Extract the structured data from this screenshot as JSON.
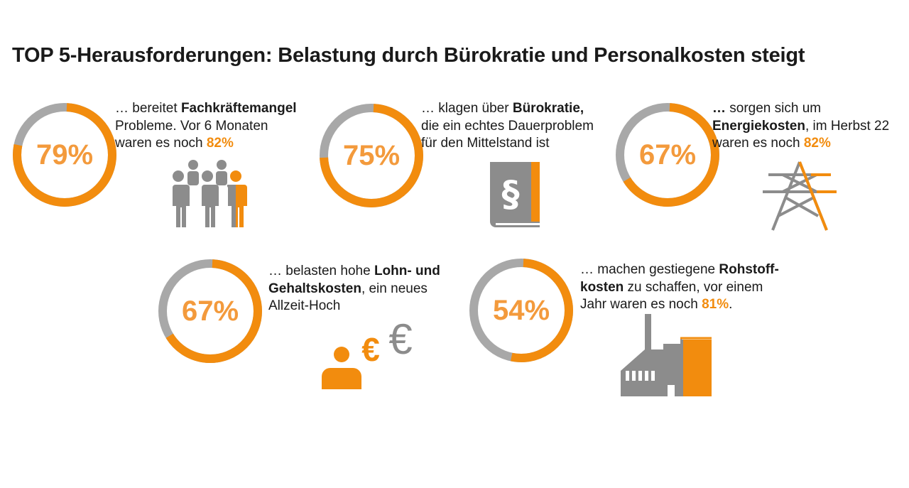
{
  "title": "TOP 5-Herausforderungen: Belastung durch Bürokratie und Personalkosten steigt",
  "colors": {
    "accent": "#f28c0e",
    "track": "#a8a8a8",
    "percent_text": "#f39a3c",
    "icon_gray": "#8c8c8c"
  },
  "chart_data": {
    "type": "donut",
    "series": [
      {
        "percent_label": "79%",
        "value": 79
      },
      {
        "percent_label": "75%",
        "value": 75
      },
      {
        "percent_label": "67%",
        "value": 67
      },
      {
        "percent_label": "67%",
        "value": 67
      },
      {
        "percent_label": "54%",
        "value": 54
      }
    ]
  },
  "items": [
    {
      "lines": [
        [
          {
            "t": "… bereitet ",
            "s": ""
          },
          {
            "t": "Fachkräftemangel",
            "s": "b"
          }
        ],
        [
          {
            "t": "Probleme. Vor 6 Monaten",
            "s": ""
          }
        ],
        [
          {
            "t": "waren es noch ",
            "s": ""
          },
          {
            "t": "82%",
            "s": "o"
          }
        ]
      ],
      "icon": "people-group-icon"
    },
    {
      "lines": [
        [
          {
            "t": "… klagen über ",
            "s": ""
          },
          {
            "t": "Bürokratie,",
            "s": "b"
          }
        ],
        [
          {
            "t": "die ein echtes Dauerproblem",
            "s": ""
          }
        ],
        [
          {
            "t": "für den Mittelstand ist",
            "s": ""
          }
        ]
      ],
      "icon": "law-book-icon",
      "icon_symbol": "§"
    },
    {
      "lines": [
        [
          {
            "t": "…",
            "s": "b"
          },
          {
            "t": " sorgen sich um",
            "s": ""
          }
        ],
        [
          {
            "t": "Energiekosten",
            "s": "b"
          },
          {
            "t": ", im Herbst 22",
            "s": ""
          }
        ],
        [
          {
            "t": "waren es noch ",
            "s": ""
          },
          {
            "t": "82%",
            "s": "o"
          }
        ]
      ],
      "icon": "power-pylon-icon"
    },
    {
      "lines": [
        [
          {
            "t": "… belasten hohe ",
            "s": ""
          },
          {
            "t": "Lohn- und",
            "s": "b"
          }
        ],
        [
          {
            "t": "Gehaltskosten",
            "s": "b"
          },
          {
            "t": ", ein neues",
            "s": ""
          }
        ],
        [
          {
            "t": "Allzeit-Hoch",
            "s": ""
          }
        ]
      ],
      "icon": "person-euro-icon",
      "icon_symbols": [
        "€",
        "€"
      ]
    },
    {
      "lines": [
        [
          {
            "t": "… machen gestiegene ",
            "s": ""
          },
          {
            "t": "Rohstoff-",
            "s": "b"
          }
        ],
        [
          {
            "t": "kosten",
            "s": "b"
          },
          {
            "t": " zu schaffen, vor einem",
            "s": ""
          }
        ],
        [
          {
            "t": "Jahr waren es noch ",
            "s": ""
          },
          {
            "t": "81%",
            "s": "o"
          },
          {
            "t": ".",
            "s": ""
          }
        ]
      ],
      "icon": "factory-icon"
    }
  ]
}
